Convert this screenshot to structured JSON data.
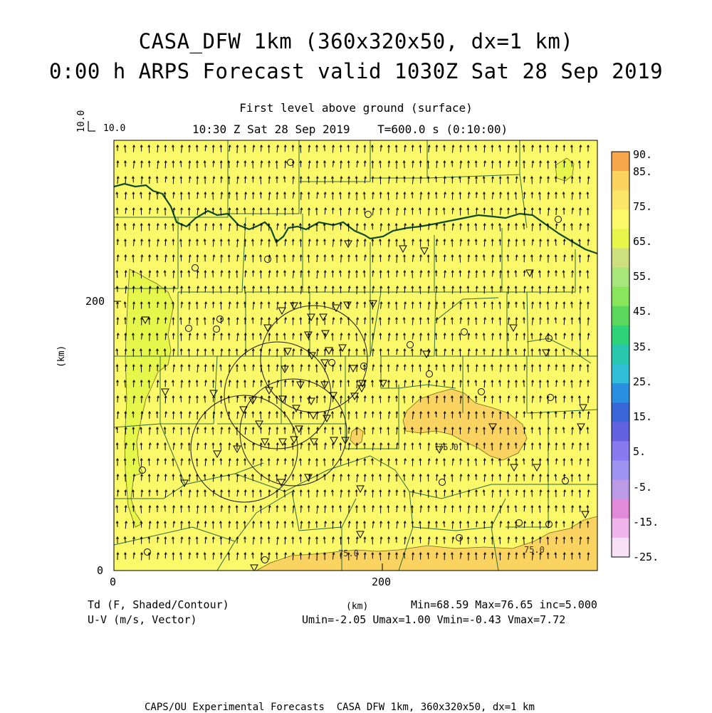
{
  "header": {
    "title_line1": "CASA_DFW 1km (360x320x50, dx=1 km)",
    "title_line2": "0:00 h ARPS Forecast valid 1030Z Sat 28 Sep 2019",
    "subtitle_level": "First level above ground (surface)",
    "subtitle_time": "10:30 Z Sat 28 Sep 2019    T=600.0 s (0:10:00)"
  },
  "vector_reference": {
    "vertical_label": "10.0",
    "horizontal_label": "10.0"
  },
  "axes": {
    "x_unit": "(km)",
    "y_unit": "(km)",
    "x_ticks": [
      "0",
      "200"
    ],
    "y_ticks": [
      "0",
      "200"
    ],
    "x_range_km": [
      0,
      360
    ],
    "y_range_km": [
      0,
      320
    ]
  },
  "colorbar": {
    "labels": [
      "90.",
      "85.",
      "75.",
      "65.",
      "55.",
      "45.",
      "35.",
      "25.",
      "15.",
      "5.",
      "-5.",
      "-15.",
      "-25."
    ],
    "bin_colors_top_to_bottom": [
      "#f7a64c",
      "#fbd360",
      "#fbe667",
      "#fbf86a",
      "#e7f64a",
      "#cde07d",
      "#a8e57a",
      "#87e65c",
      "#5cd95c",
      "#2ed279",
      "#28c7ae",
      "#2ebfd6",
      "#2b8fe0",
      "#3b66d8",
      "#6261e0",
      "#8a7af0",
      "#9f93f2",
      "#bb9be8",
      "#e08ad9",
      "#f0b6ec",
      "#f8e0f6"
    ]
  },
  "contour_labels": [
    "75.0",
    "75.0",
    "75.0"
  ],
  "footer": {
    "field_shaded": "Td (F, Shaded/Contour)",
    "field_vector": "U-V (m/s, Vector)",
    "axis_unit": "(km)",
    "stats_line1": "Min=68.59 Max=76.65 inc=5.000",
    "stats_line2": "Umin=-2.05 Umax=1.00 Vmin=-0.43 Vmax=7.72",
    "credit": "CAPS/OU Experimental Forecasts  CASA DFW 1km, 360x320x50, dx=1 km"
  },
  "map_style": {
    "background": "#fbf86a",
    "warm_region": "#fbd360",
    "cool_region": "#e7f64a",
    "county_lines": "#2e6b3c",
    "state_border": "#0e4a2a",
    "station_marker": "#000000"
  }
}
